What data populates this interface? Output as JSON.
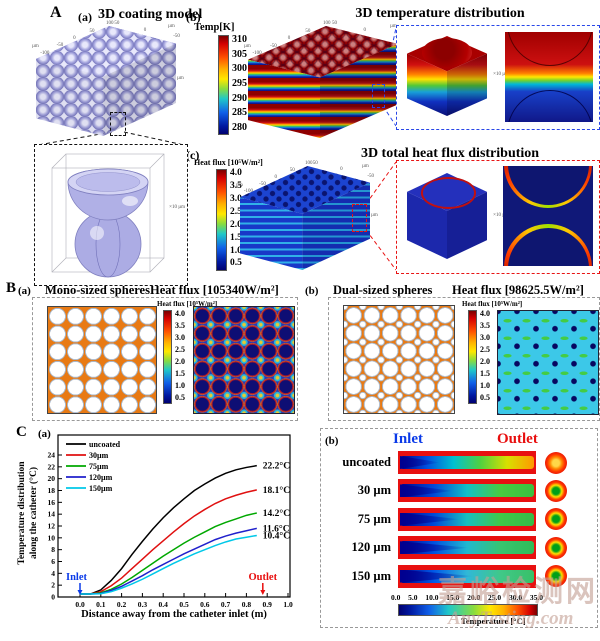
{
  "colors": {
    "lavender": "#a4a4de",
    "lavender_light": "#e8e8fb",
    "lavender_dark": "#7c7cc0",
    "orange_bg": "#e87a14",
    "map_navy": "#0e0e74",
    "map_blue": "#2636b8",
    "map_cyan": "#3cc8e8",
    "dash_green": "#44cc44",
    "dot_navy": "#070760",
    "box_blue": "#2846e8",
    "box_red": "#e81414",
    "inlet_blue": "#0a3ae8",
    "outlet_red": "#e80e0e",
    "strip_red": "#e81010"
  },
  "panelA": {
    "label": "A",
    "a": {
      "label": "(a)",
      "title": "3D coating model",
      "axis_unit": "µm",
      "axis_ticks": [
        "-100",
        "-50",
        "0",
        "50",
        "100"
      ],
      "axis_ticks_side": [
        "50",
        "0",
        "-50"
      ],
      "inset_unit": "×10 µm"
    },
    "b": {
      "label": "(b)",
      "title": "3D temperature  distribution",
      "axis_unit": "µm",
      "axis_ticks": [
        "-100",
        "-50",
        "0",
        "50",
        "100"
      ],
      "axis_ticks_side": [
        "50",
        "0",
        "-50"
      ],
      "colorbar": {
        "title": "Temp[K]",
        "ticks": [
          "310",
          "305",
          "300",
          "295",
          "290",
          "285",
          "280"
        ]
      },
      "inset_unit": "×10 µm"
    },
    "c": {
      "label": "(c)",
      "title": "3D total heat flux distribution",
      "axis_unit": "µm",
      "axis_ticks": [
        "-100",
        "-50",
        "0",
        "50",
        "100"
      ],
      "axis_ticks_side": [
        "50",
        "0",
        "-50"
      ],
      "colorbar": {
        "title": "Heat flux [10⁵W/m²]",
        "ticks": [
          "4.0",
          "3.5",
          "3.0",
          "2.5",
          "2.0",
          "1.5",
          "1.0",
          "0.5"
        ]
      },
      "inset_unit": "×10 µm"
    }
  },
  "panelB": {
    "label": "B",
    "a": {
      "label": "(a)",
      "title": "Mono-sized spheres",
      "flux_value": "Heat flux [105340W/m²]",
      "colorbar": {
        "title": "Heat flux [10⁵W/m²]",
        "ticks": [
          "4.0",
          "3.5",
          "3.0",
          "2.5",
          "2.0",
          "1.5",
          "1.0",
          "0.5"
        ]
      }
    },
    "b": {
      "label": "(b)",
      "title": "Dual-sized spheres",
      "flux_value": "Heat flux [98625.5W/m²]",
      "colorbar": {
        "title": "Heat flux [10⁵W/m²]",
        "ticks": [
          "4.0",
          "3.5",
          "3.0",
          "2.5",
          "2.0",
          "1.5",
          "1.0",
          "0.5"
        ]
      }
    }
  },
  "panelC": {
    "label": "C",
    "a": {
      "label": "(a)"
    },
    "b": {
      "label": "(b)",
      "inlet": "Inlet",
      "outlet": "Outlet",
      "rows": [
        {
          "label": "uncoated",
          "wedge_pct": 30,
          "core_colors": [
            "#000088",
            "#0050e0",
            "#00c0d0",
            "#50d040",
            "#d8e000",
            "#ff9800"
          ],
          "circle_center": "#ffd848",
          "circle_mid": "#ff8800"
        },
        {
          "label": "30 µm",
          "wedge_pct": 40,
          "core_colors": [
            "#000088",
            "#0048d8",
            "#10c0c8",
            "#48cc40",
            "#38c040"
          ],
          "circle_center": "#00a018",
          "circle_mid": "#ffdf00"
        },
        {
          "label": "75 µm",
          "wedge_pct": 45,
          "core_colors": [
            "#000088",
            "#0048d8",
            "#18c0c0",
            "#40c848",
            "#34bc48"
          ],
          "circle_center": "#00a018",
          "circle_mid": "#ffdf00"
        },
        {
          "label": "120 µm",
          "wedge_pct": 52,
          "core_colors": [
            "#000088",
            "#0050e0",
            "#20b8d0",
            "#38c470",
            "#30bc58"
          ],
          "circle_center": "#00a018",
          "circle_mid": "#ffdf00"
        },
        {
          "label": "150 µm",
          "wedge_pct": 55,
          "core_colors": [
            "#000088",
            "#0058e8",
            "#30b8d8",
            "#40c888",
            "#38c068"
          ],
          "circle_center": "#00a018",
          "circle_mid": "#ffdf00"
        }
      ],
      "colorbar": {
        "ticks": [
          "0.0",
          "5.0",
          "10.0",
          "15.0",
          "20.0",
          "25.0",
          "30.0",
          "35.0"
        ],
        "title": "Temperature [°C]"
      }
    }
  },
  "chart_data": {
    "type": "line",
    "title": "",
    "xlabel": "Distance away from the catheter inlet (m)",
    "ylabel": "Temperature distribution\nalong the catheter (°C)",
    "xlim": [
      0,
      1.0
    ],
    "ylim": [
      0,
      24
    ],
    "xticks": [
      0.0,
      0.1,
      0.2,
      0.3,
      0.4,
      0.5,
      0.6,
      0.7,
      0.8,
      0.9,
      1.0
    ],
    "yticks": [
      0,
      2,
      4,
      6,
      8,
      10,
      12,
      14,
      16,
      18,
      20,
      22,
      24
    ],
    "grid": false,
    "legend_position": "top-left",
    "x": [
      0,
      0.05,
      0.1,
      0.15,
      0.2,
      0.25,
      0.3,
      0.35,
      0.4,
      0.45,
      0.5,
      0.55,
      0.6,
      0.65,
      0.7,
      0.75,
      0.8,
      0.85
    ],
    "series": [
      {
        "name": "uncoated",
        "color": "#000000",
        "end_label": "22.2°C",
        "y": [
          0.5,
          0.5,
          1.2,
          2.8,
          4.8,
          7.2,
          9.4,
          11.5,
          13.4,
          15.1,
          16.6,
          18.0,
          19.1,
          20.1,
          20.9,
          21.5,
          21.9,
          22.2
        ]
      },
      {
        "name": "30µm",
        "color": "#e01010",
        "end_label": "18.1°C",
        "y": [
          0.5,
          0.5,
          0.9,
          1.9,
          3.2,
          4.8,
          6.4,
          8.0,
          9.5,
          11.0,
          12.4,
          13.7,
          14.8,
          15.8,
          16.6,
          17.2,
          17.7,
          18.1
        ]
      },
      {
        "name": "75µm",
        "color": "#00a800",
        "end_label": "14.2°C",
        "y": [
          0.5,
          0.5,
          0.7,
          1.3,
          2.2,
          3.3,
          4.5,
          5.7,
          6.9,
          8.0,
          9.1,
          10.1,
          11.0,
          11.9,
          12.6,
          13.2,
          13.8,
          14.2
        ]
      },
      {
        "name": "120µm",
        "color": "#2020cc",
        "end_label": "11.6°C",
        "y": [
          0.5,
          0.5,
          0.6,
          1.1,
          1.8,
          2.7,
          3.6,
          4.6,
          5.5,
          6.4,
          7.3,
          8.1,
          8.9,
          9.7,
          10.3,
          10.8,
          11.2,
          11.6
        ]
      },
      {
        "name": "150µm",
        "color": "#00c8e8",
        "end_label": "10.4°C",
        "y": [
          0.5,
          0.5,
          0.55,
          0.9,
          1.5,
          2.2,
          3.0,
          3.9,
          4.8,
          5.7,
          6.5,
          7.3,
          8.0,
          8.7,
          9.3,
          9.8,
          10.1,
          10.4
        ]
      }
    ],
    "annotations": [
      {
        "text": "Inlet",
        "color": "#0a3ae8",
        "x": 0
      },
      {
        "text": "Outlet",
        "color": "#e80e0e",
        "x": 0.85
      }
    ]
  },
  "watermark": {
    "line1": "嘉峪检测网",
    "line2": "AnyTesting.com"
  }
}
